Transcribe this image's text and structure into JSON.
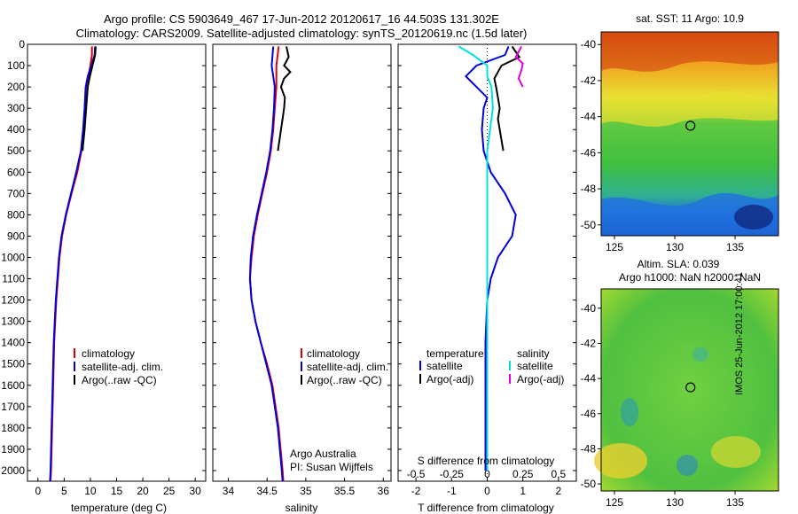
{
  "header": {
    "line1": "Argo profile: CS 5903649_467 17-Jun-2012 20120617_16 44.503S 131.302E",
    "line2": "Climatology: CARS2009. Satellite-adjusted climatology: synTS_20120619.nc (1.5d later)"
  },
  "depth_axis": {
    "range": [
      0,
      2050
    ],
    "ticks": [
      0,
      100,
      200,
      300,
      400,
      500,
      600,
      700,
      800,
      900,
      1000,
      1100,
      1200,
      1300,
      1400,
      1500,
      1600,
      1700,
      1800,
      1900,
      2000
    ]
  },
  "colors": {
    "climatology": "#e00000",
    "satellite": "#0000e0",
    "argo": "#000000",
    "satellite_s": "#00e0e0",
    "argo_s": "#e000e0"
  },
  "panels": {
    "temperature": {
      "xlabel": "temperature (deg C)",
      "xticks": [
        "0",
        "5",
        "10",
        "15",
        "20",
        "25",
        "30"
      ],
      "legend": [
        "climatology",
        "satellite-adj. clim.",
        "Argo(..raw -QC)"
      ]
    },
    "salinity": {
      "xlabel": "salinity",
      "xticks": [
        "34",
        "34.5",
        "35",
        "35.5",
        "36"
      ],
      "legend": [
        "climatology",
        "satellite-adj. clim.",
        "Argo(..raw -QC)"
      ],
      "credit1": "Argo Australia",
      "credit2": "PI: Susan Wijffels"
    },
    "difference": {
      "xlabel": "T difference from climatology",
      "xticks": [
        "-2",
        "-1",
        "0",
        "1",
        "2"
      ],
      "s_label": "S difference from climatology",
      "s_ticks": [
        "-0.5",
        "-0.25",
        "0",
        "0.25",
        "0.5"
      ],
      "legend_t_title": "temperature",
      "legend_t": [
        "satellite",
        "Argo(-adj)"
      ],
      "legend_s_title": "salinity",
      "legend_s": [
        "satellite",
        "Argo(-adj)"
      ]
    }
  },
  "maps": {
    "sst": {
      "title": "sat. SST: 11 Argo: 10.9",
      "yticks": [
        "-40",
        "-42",
        "-44",
        "-46",
        "-48",
        "-50"
      ],
      "xticks": [
        "125",
        "130",
        "135"
      ]
    },
    "sla": {
      "title1": "Altim. SLA: 0.039",
      "title2": "Argo h1000: NaN h2000: NaN",
      "yticks": [
        "-40",
        "-42",
        "-44",
        "-46",
        "-48",
        "-50"
      ],
      "xticks": [
        "125",
        "130",
        "135"
      ]
    },
    "marker": {
      "lon": 131.302,
      "lat": -44.503
    }
  },
  "side_label": "IMOS 25-Jun-2012 17:00:41",
  "chart_data": [
    {
      "type": "line",
      "title": "",
      "xlabel": "temperature (deg C)",
      "ylabel": "",
      "xlim": [
        -2,
        32
      ],
      "ylim": [
        2050,
        0
      ],
      "series": [
        {
          "name": "climatology",
          "depth": [
            10,
            50,
            100,
            150,
            200,
            300,
            400,
            500,
            600,
            700,
            800,
            900,
            1000,
            1200,
            1400,
            1600,
            1800,
            2000,
            2050
          ],
          "values": [
            10.3,
            10.3,
            10.0,
            9.6,
            9.3,
            9.0,
            8.7,
            8.3,
            7.5,
            6.4,
            5.4,
            4.6,
            4.1,
            3.5,
            3.1,
            2.9,
            2.7,
            2.5,
            2.4
          ]
        },
        {
          "name": "satellite-adj. clim.",
          "depth": [
            10,
            50,
            100,
            150,
            200,
            300,
            400,
            500,
            600,
            700,
            800,
            900,
            1000,
            1200,
            1400,
            1600,
            1800,
            2000,
            2050
          ],
          "values": [
            10.9,
            10.8,
            10.2,
            9.5,
            9.1,
            8.9,
            8.6,
            8.2,
            7.3,
            6.3,
            5.3,
            4.5,
            4.0,
            3.4,
            3.0,
            2.8,
            2.6,
            2.4,
            2.3
          ]
        },
        {
          "name": "Argo(..raw -QC)",
          "depth": [
            10,
            50,
            100,
            150,
            200,
            300,
            400,
            500
          ],
          "values": [
            11.0,
            10.9,
            10.4,
            9.9,
            9.5,
            9.2,
            8.9,
            8.5
          ]
        }
      ]
    },
    {
      "type": "line",
      "title": "",
      "xlabel": "salinity",
      "ylabel": "",
      "xlim": [
        33.8,
        36.1
      ],
      "ylim": [
        2050,
        0
      ],
      "series": [
        {
          "name": "climatology",
          "depth": [
            10,
            100,
            200,
            300,
            400,
            500,
            600,
            700,
            800,
            900,
            1000,
            1100,
            1200,
            1300,
            1400,
            1500,
            1600,
            1800,
            2000,
            2050
          ],
          "values": [
            34.65,
            34.62,
            34.62,
            34.6,
            34.58,
            34.55,
            34.5,
            34.44,
            34.38,
            34.33,
            34.3,
            34.28,
            34.3,
            34.35,
            34.42,
            34.5,
            34.57,
            34.65,
            34.7,
            34.71
          ]
        },
        {
          "name": "satellite-adj. clim.",
          "depth": [
            10,
            100,
            200,
            300,
            400,
            500,
            600,
            700,
            800,
            900,
            1000,
            1100,
            1200,
            1300,
            1400,
            1500,
            1600,
            1800,
            2000,
            2050
          ],
          "values": [
            34.58,
            34.56,
            34.6,
            34.59,
            34.57,
            34.54,
            34.49,
            34.43,
            34.37,
            34.32,
            34.29,
            34.28,
            34.3,
            34.35,
            34.42,
            34.49,
            34.56,
            34.64,
            34.69,
            34.7
          ]
        },
        {
          "name": "Argo(..raw -QC)",
          "depth": [
            10,
            60,
            100,
            130,
            160,
            200,
            250,
            300,
            350,
            400,
            450,
            500
          ],
          "values": [
            34.75,
            34.78,
            34.72,
            34.8,
            34.72,
            34.68,
            34.73,
            34.72,
            34.7,
            34.68,
            34.66,
            34.64
          ]
        }
      ]
    },
    {
      "type": "line",
      "title": "",
      "xlabel": "T difference from climatology",
      "ylabel": "",
      "xlim": [
        -2.5,
        2.5
      ],
      "ylim": [
        2050,
        0
      ],
      "series": [
        {
          "name": "satellite",
          "depth": [
            10,
            50,
            100,
            150,
            200,
            250,
            300,
            400,
            500,
            600,
            700,
            800,
            900,
            1000,
            1100,
            1200,
            1400,
            1600,
            1800,
            2000
          ],
          "values": [
            0.6,
            0.5,
            -0.3,
            -0.6,
            -0.3,
            0.0,
            -0.1,
            -0.15,
            -0.1,
            0.1,
            0.5,
            0.8,
            0.7,
            0.3,
            0.1,
            0.0,
            -0.05,
            -0.05,
            -0.05,
            -0.05
          ]
        },
        {
          "name": "Argo(-adj)",
          "depth": [
            10,
            60,
            100,
            130,
            160,
            200,
            250,
            300,
            350,
            400,
            450,
            500
          ],
          "values": [
            0.7,
            0.9,
            0.4,
            0.3,
            0.2,
            0.25,
            0.3,
            0.35,
            0.3,
            0.35,
            0.4,
            0.45
          ]
        },
        {
          "name": "satellite (salinity)",
          "depth": [
            10,
            50,
            100,
            150,
            200,
            300,
            400,
            500,
            600,
            800,
            1000,
            1500,
            2000
          ],
          "values": [
            -0.2,
            -0.1,
            0.0,
            0.0,
            0.03,
            0.04,
            0.02,
            0.0,
            0.0,
            0.0,
            0.0,
            0.0,
            0.0
          ]
        },
        {
          "name": "Argo(-adj) (salinity)",
          "depth": [
            10,
            60,
            90,
            120,
            160,
            200
          ],
          "values": [
            0.24,
            0.2,
            0.25,
            0.24,
            0.22,
            0.25
          ]
        }
      ]
    }
  ]
}
